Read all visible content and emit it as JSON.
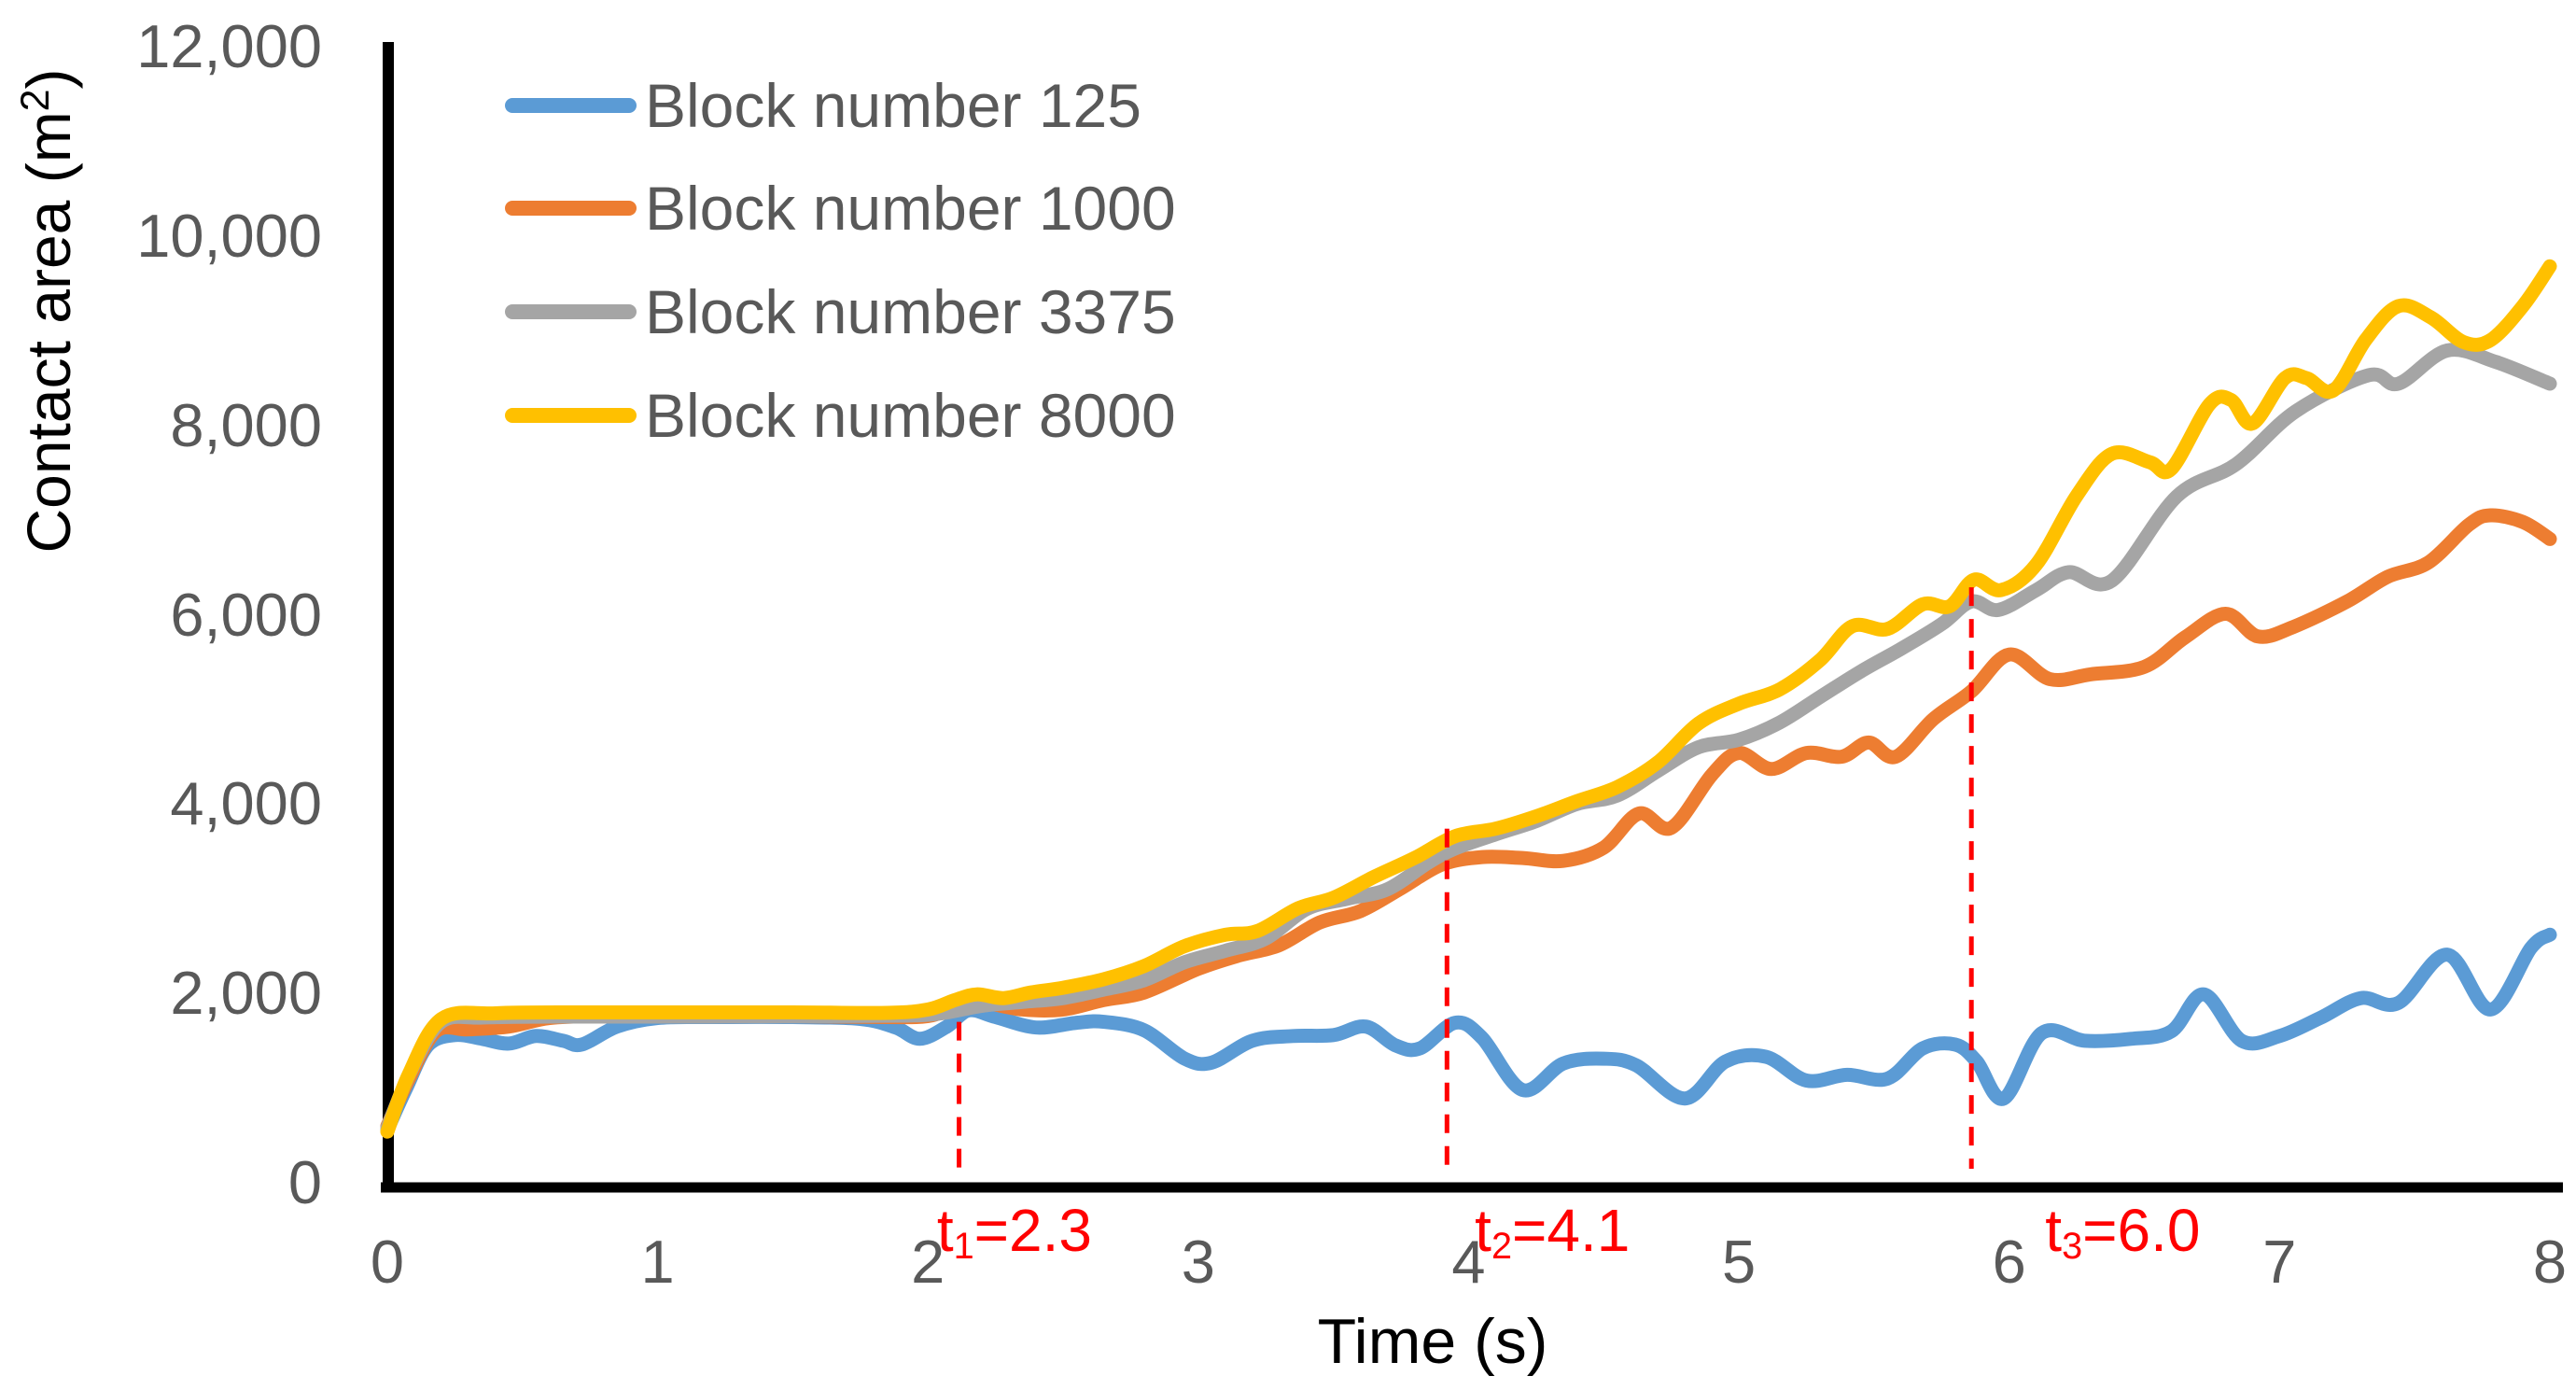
{
  "chart_data": {
    "type": "line",
    "title": "",
    "xlabel": "Time (s)",
    "ylabel": "Contact area (m²)",
    "ylabel_parts": {
      "prefix": "Contact area (m",
      "sup": "2",
      "suffix": ")"
    },
    "xlim": [
      0,
      8
    ],
    "ylim": [
      0,
      12000
    ],
    "grid": false,
    "legend_position": "top-left-inside",
    "x_ticks": [
      {
        "v": 0,
        "label": "0"
      },
      {
        "v": 1,
        "label": "1"
      },
      {
        "v": 2,
        "label": "2"
      },
      {
        "v": 3,
        "label": "3"
      },
      {
        "v": 4,
        "label": "4"
      },
      {
        "v": 5,
        "label": "5"
      },
      {
        "v": 6,
        "label": "6"
      },
      {
        "v": 7,
        "label": "7"
      },
      {
        "v": 8,
        "label": "8"
      }
    ],
    "y_ticks": [
      {
        "v": 0,
        "label": "0"
      },
      {
        "v": 2000,
        "label": "2,000"
      },
      {
        "v": 4000,
        "label": "4,000"
      },
      {
        "v": 6000,
        "label": "6,000"
      },
      {
        "v": 8000,
        "label": "8,000"
      },
      {
        "v": 10000,
        "label": "10,000"
      },
      {
        "v": 12000,
        "label": "12,000"
      }
    ],
    "axis_color": "#000000",
    "tick_label_color": "#595959",
    "annotation_color": "#ff0000",
    "annotations": [
      {
        "prefix": "t",
        "sub": "1",
        "text": "=2.3",
        "line_x": 2.115,
        "label_x": 2.32,
        "line_top": 1700
      },
      {
        "prefix": "t",
        "sub": "2",
        "text": "=4.1",
        "line_x": 3.92,
        "label_x": 4.31,
        "line_top": 3740
      },
      {
        "prefix": "t",
        "sub": "3",
        "text": "=6.0",
        "line_x": 5.86,
        "label_x": 6.42,
        "line_top": 6290
      }
    ],
    "series": [
      {
        "name": "Block number 125",
        "color": "#5B9BD5",
        "points": [
          [
            0,
            560
          ],
          [
            0.07,
            1000
          ],
          [
            0.15,
            1450
          ],
          [
            0.25,
            1560
          ],
          [
            0.35,
            1520
          ],
          [
            0.45,
            1470
          ],
          [
            0.55,
            1550
          ],
          [
            0.65,
            1500
          ],
          [
            0.72,
            1460
          ],
          [
            0.85,
            1650
          ],
          [
            1,
            1740
          ],
          [
            1.2,
            1750
          ],
          [
            1.5,
            1750
          ],
          [
            1.75,
            1730
          ],
          [
            1.88,
            1640
          ],
          [
            1.97,
            1520
          ],
          [
            2.07,
            1650
          ],
          [
            2.15,
            1820
          ],
          [
            2.25,
            1750
          ],
          [
            2.4,
            1640
          ],
          [
            2.55,
            1690
          ],
          [
            2.65,
            1700
          ],
          [
            2.8,
            1610
          ],
          [
            2.95,
            1310
          ],
          [
            3.05,
            1270
          ],
          [
            3.2,
            1500
          ],
          [
            3.35,
            1550
          ],
          [
            3.5,
            1560
          ],
          [
            3.62,
            1650
          ],
          [
            3.73,
            1450
          ],
          [
            3.82,
            1420
          ],
          [
            3.95,
            1690
          ],
          [
            4.05,
            1530
          ],
          [
            4.2,
            980
          ],
          [
            4.35,
            1260
          ],
          [
            4.5,
            1310
          ],
          [
            4.62,
            1240
          ],
          [
            4.8,
            890
          ],
          [
            4.95,
            1280
          ],
          [
            5.1,
            1330
          ],
          [
            5.25,
            1080
          ],
          [
            5.4,
            1140
          ],
          [
            5.55,
            1100
          ],
          [
            5.68,
            1420
          ],
          [
            5.8,
            1460
          ],
          [
            5.88,
            1280
          ],
          [
            5.98,
            890
          ],
          [
            6.12,
            1580
          ],
          [
            6.28,
            1500
          ],
          [
            6.45,
            1520
          ],
          [
            6.6,
            1600
          ],
          [
            6.72,
            1990
          ],
          [
            6.86,
            1500
          ],
          [
            7,
            1550
          ],
          [
            7.15,
            1740
          ],
          [
            7.3,
            1950
          ],
          [
            7.44,
            1900
          ],
          [
            7.62,
            2410
          ],
          [
            7.78,
            1830
          ],
          [
            7.93,
            2480
          ],
          [
            8,
            2620
          ]
        ]
      },
      {
        "name": "Block number 1000",
        "color": "#ED7D31",
        "points": [
          [
            0,
            600
          ],
          [
            0.08,
            1100
          ],
          [
            0.18,
            1600
          ],
          [
            0.3,
            1620
          ],
          [
            0.45,
            1650
          ],
          [
            0.6,
            1740
          ],
          [
            0.8,
            1760
          ],
          [
            1.1,
            1760
          ],
          [
            1.5,
            1760
          ],
          [
            1.85,
            1750
          ],
          [
            2,
            1760
          ],
          [
            2.1,
            1850
          ],
          [
            2.2,
            1900
          ],
          [
            2.35,
            1830
          ],
          [
            2.5,
            1830
          ],
          [
            2.65,
            1930
          ],
          [
            2.8,
            2010
          ],
          [
            3,
            2260
          ],
          [
            3.15,
            2400
          ],
          [
            3.3,
            2510
          ],
          [
            3.45,
            2750
          ],
          [
            3.6,
            2870
          ],
          [
            3.75,
            3110
          ],
          [
            3.9,
            3360
          ],
          [
            4.05,
            3440
          ],
          [
            4.2,
            3430
          ],
          [
            4.35,
            3400
          ],
          [
            4.5,
            3540
          ],
          [
            4.63,
            3900
          ],
          [
            4.75,
            3750
          ],
          [
            4.9,
            4310
          ],
          [
            5,
            4540
          ],
          [
            5.12,
            4370
          ],
          [
            5.25,
            4540
          ],
          [
            5.38,
            4500
          ],
          [
            5.48,
            4650
          ],
          [
            5.58,
            4500
          ],
          [
            5.72,
            4900
          ],
          [
            5.86,
            5190
          ],
          [
            6,
            5580
          ],
          [
            6.15,
            5320
          ],
          [
            6.3,
            5370
          ],
          [
            6.5,
            5450
          ],
          [
            6.65,
            5760
          ],
          [
            6.8,
            6010
          ],
          [
            6.92,
            5770
          ],
          [
            7.05,
            5870
          ],
          [
            7.25,
            6140
          ],
          [
            7.4,
            6400
          ],
          [
            7.55,
            6550
          ],
          [
            7.7,
            6950
          ],
          [
            7.78,
            7050
          ],
          [
            7.9,
            6980
          ],
          [
            8,
            6800
          ]
        ]
      },
      {
        "name": "Block number 3375",
        "color": "#A5A5A5",
        "points": [
          [
            0,
            580
          ],
          [
            0.09,
            1200
          ],
          [
            0.2,
            1700
          ],
          [
            0.35,
            1745
          ],
          [
            0.6,
            1755
          ],
          [
            1,
            1755
          ],
          [
            1.5,
            1758
          ],
          [
            1.9,
            1765
          ],
          [
            2.05,
            1790
          ],
          [
            2.2,
            1870
          ],
          [
            2.35,
            1910
          ],
          [
            2.5,
            1950
          ],
          [
            2.65,
            2040
          ],
          [
            2.8,
            2140
          ],
          [
            2.95,
            2330
          ],
          [
            3.1,
            2450
          ],
          [
            3.25,
            2580
          ],
          [
            3.4,
            2890
          ],
          [
            3.55,
            3000
          ],
          [
            3.7,
            3100
          ],
          [
            3.85,
            3380
          ],
          [
            3.95,
            3530
          ],
          [
            4.1,
            3680
          ],
          [
            4.25,
            3820
          ],
          [
            4.4,
            4000
          ],
          [
            4.55,
            4090
          ],
          [
            4.7,
            4350
          ],
          [
            4.85,
            4600
          ],
          [
            5,
            4680
          ],
          [
            5.15,
            4860
          ],
          [
            5.3,
            5130
          ],
          [
            5.45,
            5400
          ],
          [
            5.6,
            5640
          ],
          [
            5.75,
            5900
          ],
          [
            5.86,
            6140
          ],
          [
            5.96,
            6050
          ],
          [
            6.1,
            6260
          ],
          [
            6.22,
            6450
          ],
          [
            6.38,
            6360
          ],
          [
            6.62,
            7250
          ],
          [
            6.84,
            7590
          ],
          [
            7.06,
            8150
          ],
          [
            7.33,
            8530
          ],
          [
            7.44,
            8440
          ],
          [
            7.62,
            8790
          ],
          [
            7.8,
            8670
          ],
          [
            8,
            8440
          ]
        ]
      },
      {
        "name": "Block number 8000",
        "color": "#FFC000",
        "points": [
          [
            0,
            540
          ],
          [
            0.08,
            1150
          ],
          [
            0.2,
            1730
          ],
          [
            0.4,
            1790
          ],
          [
            0.7,
            1800
          ],
          [
            1.1,
            1800
          ],
          [
            1.5,
            1800
          ],
          [
            1.85,
            1795
          ],
          [
            2,
            1830
          ],
          [
            2.1,
            1930
          ],
          [
            2.18,
            1990
          ],
          [
            2.28,
            1950
          ],
          [
            2.38,
            2010
          ],
          [
            2.5,
            2060
          ],
          [
            2.65,
            2150
          ],
          [
            2.8,
            2290
          ],
          [
            2.95,
            2500
          ],
          [
            3.1,
            2620
          ],
          [
            3.22,
            2660
          ],
          [
            3.37,
            2900
          ],
          [
            3.5,
            3010
          ],
          [
            3.65,
            3230
          ],
          [
            3.8,
            3430
          ],
          [
            3.95,
            3660
          ],
          [
            4.1,
            3740
          ],
          [
            4.25,
            3870
          ],
          [
            4.4,
            4030
          ],
          [
            4.55,
            4180
          ],
          [
            4.7,
            4440
          ],
          [
            4.85,
            4850
          ],
          [
            5,
            5060
          ],
          [
            5.15,
            5210
          ],
          [
            5.3,
            5520
          ],
          [
            5.42,
            5880
          ],
          [
            5.55,
            5850
          ],
          [
            5.68,
            6110
          ],
          [
            5.78,
            6090
          ],
          [
            5.87,
            6370
          ],
          [
            5.97,
            6260
          ],
          [
            6.1,
            6530
          ],
          [
            6.25,
            7260
          ],
          [
            6.38,
            7700
          ],
          [
            6.52,
            7610
          ],
          [
            6.6,
            7540
          ],
          [
            6.74,
            8220
          ],
          [
            6.82,
            8270
          ],
          [
            6.9,
            8020
          ],
          [
            7.02,
            8500
          ],
          [
            7.1,
            8500
          ],
          [
            7.2,
            8370
          ],
          [
            7.32,
            8910
          ],
          [
            7.44,
            9260
          ],
          [
            7.56,
            9140
          ],
          [
            7.68,
            8880
          ],
          [
            7.78,
            8900
          ],
          [
            7.9,
            9260
          ],
          [
            8,
            9680
          ]
        ]
      }
    ]
  }
}
